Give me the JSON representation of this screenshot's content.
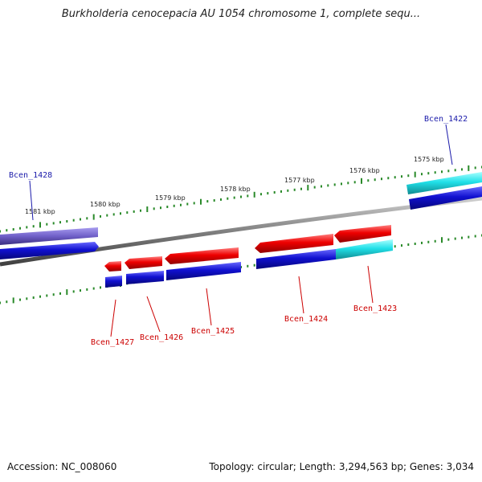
{
  "title": "Burkholderia cenocepacia AU 1054 chromosome 1, complete sequ...",
  "footer": {
    "accession": "Accession: NC_008060",
    "summary": "Topology: circular; Length: 3,294,563 bp; Genes: 3,034"
  },
  "kbp_labels": [
    "1581 kbp",
    "1580 kbp",
    "1579 kbp",
    "1578 kbp",
    "1577 kbp",
    "1576 kbp",
    "1575 kbp"
  ],
  "genes": {
    "forward": [
      "Bcen_1428",
      "Bcen_1422"
    ],
    "reverse": [
      "Bcen_1427",
      "Bcen_1426",
      "Bcen_1425",
      "Bcen_1424",
      "Bcen_1423"
    ]
  },
  "colors": {
    "backbone": "#808080",
    "forward_gene": "#1010d0",
    "reverse_gene": "#ee0000",
    "highlight": "#20e0e8",
    "forward_purple": "#7060c8",
    "tick": "#2a8a2a",
    "blue_label": "#1a1aaa",
    "red_label": "#cc0000"
  }
}
